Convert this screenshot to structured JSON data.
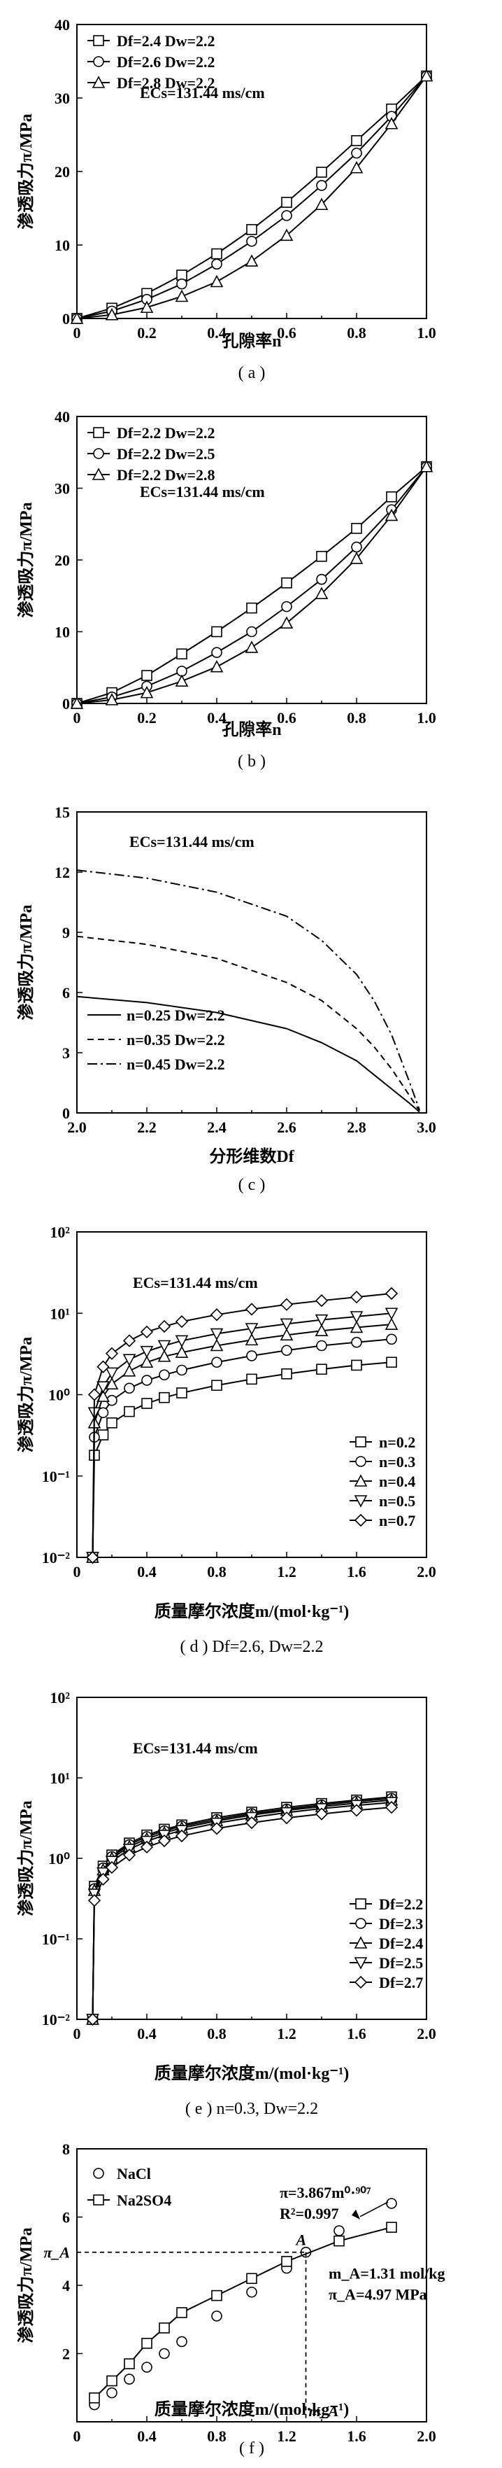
{
  "chart_data": [
    {
      "id": "a",
      "type": "line",
      "caption": "( a )",
      "xlabel": "孔隙率n",
      "ylabel": "渗透吸力π/MPa",
      "xlim": [
        0,
        1.0
      ],
      "ylim": [
        0,
        40
      ],
      "xticks": [
        "0",
        "0.2",
        "0.4",
        "0.6",
        "0.8",
        "1.0"
      ],
      "yticks": [
        "0",
        "10",
        "20",
        "30",
        "40"
      ],
      "annotation": "ECs=131.44 ms/cm",
      "legend_position": "top-left",
      "x": [
        0,
        0.1,
        0.2,
        0.3,
        0.4,
        0.5,
        0.6,
        0.7,
        0.8,
        0.9,
        1.0
      ],
      "series": [
        {
          "name": "Df=2.4 Dw=2.2",
          "marker": "square",
          "values": [
            0,
            1.4,
            3.4,
            5.9,
            8.8,
            12.1,
            15.8,
            19.9,
            24.2,
            28.5,
            33
          ]
        },
        {
          "name": "Df=2.6 Dw=2.2",
          "marker": "circle",
          "values": [
            0,
            1.0,
            2.6,
            4.7,
            7.4,
            10.5,
            14.0,
            18.1,
            22.5,
            27.5,
            33
          ]
        },
        {
          "name": "Df=2.8 Dw=2.2",
          "marker": "triangle",
          "values": [
            0,
            0.5,
            1.5,
            3.0,
            5.0,
            7.8,
            11.3,
            15.5,
            20.5,
            26.5,
            33
          ]
        }
      ]
    },
    {
      "id": "b",
      "type": "line",
      "caption": "( b )",
      "xlabel": "孔隙率n",
      "ylabel": "渗透吸力π/MPa",
      "xlim": [
        0,
        1.0
      ],
      "ylim": [
        0,
        40
      ],
      "xticks": [
        "0",
        "0.2",
        "0.4",
        "0.6",
        "0.8",
        "1.0"
      ],
      "yticks": [
        "0",
        "10",
        "20",
        "30",
        "40"
      ],
      "annotation": "ECs=131.44 ms/cm",
      "legend_position": "top-left",
      "x": [
        0,
        0.1,
        0.2,
        0.3,
        0.4,
        0.5,
        0.6,
        0.7,
        0.8,
        0.9,
        1.0
      ],
      "series": [
        {
          "name": "Df=2.2 Dw=2.2",
          "marker": "square",
          "values": [
            0,
            1.5,
            3.9,
            6.9,
            10.0,
            13.3,
            16.8,
            20.5,
            24.4,
            28.8,
            33
          ]
        },
        {
          "name": "Df=2.2 Dw=2.5",
          "marker": "circle",
          "values": [
            0,
            0.9,
            2.4,
            4.5,
            7.1,
            10.0,
            13.5,
            17.3,
            21.8,
            27.0,
            33
          ]
        },
        {
          "name": "Df=2.2 Dw=2.8",
          "marker": "triangle",
          "values": [
            0,
            0.5,
            1.5,
            3.1,
            5.1,
            7.8,
            11.2,
            15.3,
            20.2,
            26.2,
            33
          ]
        }
      ]
    },
    {
      "id": "c",
      "type": "line",
      "caption": "( c )",
      "xlabel": "分形维数Df",
      "ylabel": "渗透吸力π/MPa",
      "xlim": [
        2.0,
        3.0
      ],
      "ylim": [
        0,
        15
      ],
      "xticks": [
        "2.0",
        "2.2",
        "2.4",
        "2.6",
        "2.8",
        "3.0"
      ],
      "yticks": [
        "0",
        "3",
        "6",
        "9",
        "12",
        "15"
      ],
      "annotation": "ECs=131.44 ms/cm",
      "legend_position": "bottom-left",
      "x": [
        2.0,
        2.2,
        2.4,
        2.6,
        2.7,
        2.8,
        2.85,
        2.9,
        2.95,
        2.98
      ],
      "series": [
        {
          "name": "n=0.25 Dw=2.2",
          "dash": "solid",
          "values": [
            5.8,
            5.5,
            5.0,
            4.2,
            3.5,
            2.6,
            1.9,
            1.2,
            0.5,
            0.05
          ]
        },
        {
          "name": "n=0.35 Dw=2.2",
          "dash": "dashed",
          "values": [
            8.8,
            8.4,
            7.7,
            6.5,
            5.6,
            4.2,
            3.3,
            2.2,
            0.9,
            0.1
          ]
        },
        {
          "name": "n=0.45 Dw=2.2",
          "dash": "dashdot",
          "values": [
            12.1,
            11.7,
            11.0,
            9.8,
            8.6,
            6.9,
            5.6,
            3.9,
            1.6,
            0.15
          ]
        }
      ]
    },
    {
      "id": "d",
      "type": "line",
      "caption": "( d ) Df=2.6, Dw=2.2",
      "xlabel": "质量摩尔浓度m/(mol·kg⁻¹)",
      "ylabel": "渗透吸力π/MPa",
      "xlim": [
        0,
        2.0
      ],
      "ylim": [
        0.01,
        100
      ],
      "yscale": "log",
      "xticks": [
        "0",
        "0.4",
        "0.8",
        "1.2",
        "1.6",
        "2.0"
      ],
      "yticks": [
        "10⁻²",
        "10⁻¹",
        "10⁰",
        "10¹",
        "10²"
      ],
      "annotation": "ECs=131.44 ms/cm",
      "legend_position": "bottom-right",
      "x": [
        0.09,
        0.1,
        0.15,
        0.2,
        0.3,
        0.4,
        0.5,
        0.6,
        0.8,
        1.0,
        1.2,
        1.4,
        1.6,
        1.8
      ],
      "series": [
        {
          "name": "n=0.2",
          "marker": "square",
          "values": [
            0.01,
            0.18,
            0.32,
            0.45,
            0.62,
            0.78,
            0.92,
            1.05,
            1.3,
            1.55,
            1.8,
            2.05,
            2.3,
            2.5
          ]
        },
        {
          "name": "n=0.3",
          "marker": "circle",
          "values": [
            0.01,
            0.3,
            0.6,
            0.85,
            1.2,
            1.5,
            1.75,
            2.0,
            2.5,
            3.0,
            3.5,
            4.0,
            4.4,
            4.8
          ]
        },
        {
          "name": "n=0.4",
          "marker": "triangle",
          "values": [
            0.01,
            0.45,
            0.95,
            1.35,
            1.95,
            2.5,
            2.95,
            3.3,
            4.0,
            4.7,
            5.4,
            6.1,
            6.7,
            7.3
          ]
        },
        {
          "name": "n=0.5",
          "marker": "triangle-down",
          "values": [
            0.01,
            0.6,
            1.25,
            1.85,
            2.7,
            3.4,
            4.0,
            4.6,
            5.6,
            6.5,
            7.4,
            8.3,
            9.1,
            10.0
          ]
        },
        {
          "name": "n=0.7",
          "marker": "diamond",
          "values": [
            0.01,
            1.0,
            2.2,
            3.2,
            4.6,
            5.9,
            6.9,
            7.9,
            9.6,
            11.2,
            12.8,
            14.3,
            15.8,
            17.5
          ]
        }
      ]
    },
    {
      "id": "e",
      "type": "line",
      "caption": "( e ) n=0.3, Dw=2.2",
      "xlabel": "质量摩尔浓度m/(mol·kg⁻¹)",
      "ylabel": "渗透吸力π/MPa",
      "xlim": [
        0,
        2.0
      ],
      "ylim": [
        0.01,
        100
      ],
      "yscale": "log",
      "xticks": [
        "0",
        "0.4",
        "0.8",
        "1.2",
        "1.6",
        "2.0"
      ],
      "yticks": [
        "10⁻²",
        "10⁻¹",
        "10⁰",
        "10¹",
        "10²"
      ],
      "annotation": "ECs=131.44 ms/cm",
      "legend_position": "bottom-right",
      "x": [
        0.09,
        0.1,
        0.15,
        0.2,
        0.3,
        0.4,
        0.5,
        0.6,
        0.8,
        1.0,
        1.2,
        1.4,
        1.6,
        1.8
      ],
      "series": [
        {
          "name": "Df=2.2",
          "marker": "square",
          "values": [
            0.01,
            0.45,
            0.8,
            1.1,
            1.55,
            1.95,
            2.3,
            2.6,
            3.2,
            3.75,
            4.3,
            4.8,
            5.3,
            5.8
          ]
        },
        {
          "name": "Df=2.3",
          "marker": "circle",
          "values": [
            0.01,
            0.42,
            0.76,
            1.05,
            1.48,
            1.86,
            2.2,
            2.5,
            3.05,
            3.6,
            4.1,
            4.6,
            5.1,
            5.55
          ]
        },
        {
          "name": "Df=2.4",
          "marker": "triangle",
          "values": [
            0.01,
            0.4,
            0.72,
            1.0,
            1.4,
            1.75,
            2.08,
            2.38,
            2.92,
            3.45,
            3.95,
            4.4,
            4.85,
            5.3
          ]
        },
        {
          "name": "Df=2.5",
          "marker": "triangle-down",
          "values": [
            0.01,
            0.36,
            0.66,
            0.92,
            1.3,
            1.63,
            1.94,
            2.22,
            2.74,
            3.22,
            3.7,
            4.15,
            4.55,
            4.95
          ]
        },
        {
          "name": "Df=2.7",
          "marker": "diamond",
          "values": [
            0.01,
            0.3,
            0.55,
            0.77,
            1.1,
            1.38,
            1.65,
            1.9,
            2.35,
            2.77,
            3.18,
            3.56,
            3.95,
            4.3
          ]
        }
      ]
    },
    {
      "id": "f",
      "type": "line",
      "caption": "( f )",
      "xlabel": "质量摩尔浓度m/(mol·kg⁻¹)",
      "ylabel": "渗透吸力π/MPa",
      "xlim": [
        0,
        2.0
      ],
      "ylim": [
        0,
        8
      ],
      "xticks": [
        "0",
        "0.4",
        "0.8",
        "1.2",
        "1.6",
        "2.0"
      ],
      "yticks": [
        "2",
        "4",
        "6",
        "8"
      ],
      "legend_position": "top-left",
      "series": [
        {
          "name": "NaCl",
          "marker": "circle",
          "line": false,
          "x": [
            0.1,
            0.2,
            0.3,
            0.4,
            0.5,
            0.6,
            0.8,
            1.0,
            1.2,
            1.31,
            1.5,
            1.8
          ],
          "values": [
            0.5,
            0.85,
            1.25,
            1.6,
            2.0,
            2.35,
            3.1,
            3.8,
            4.5,
            4.97,
            5.6,
            6.4
          ]
        },
        {
          "name": "Na2SO4",
          "marker": "square",
          "line": true,
          "x": [
            0.1,
            0.2,
            0.3,
            0.4,
            0.5,
            0.6,
            0.8,
            1.0,
            1.2,
            1.5,
            1.8
          ],
          "values": [
            0.7,
            1.2,
            1.7,
            2.3,
            2.75,
            3.2,
            3.7,
            4.2,
            4.7,
            5.3,
            5.7
          ]
        }
      ],
      "fit_label": "π=3.867m⁰·⁹⁰⁷",
      "r2_label": "R²=0.997",
      "point_label": "A",
      "point": {
        "x": 1.31,
        "y": 4.97
      },
      "m_label": "m_A=1.31 mol/kg",
      "pi_label": "π_A=4.97 MPa",
      "y_marker_label": "π_A",
      "x_marker_label": "m_A"
    }
  ]
}
